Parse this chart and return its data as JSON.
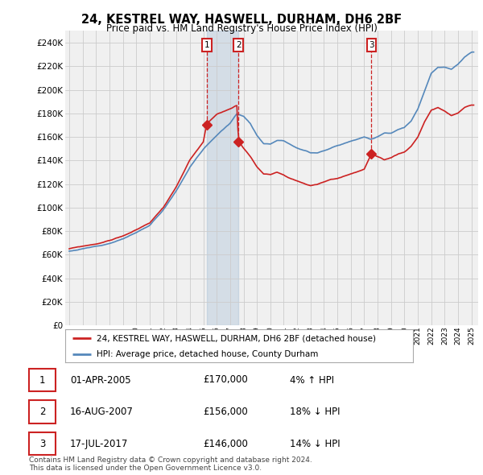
{
  "title": "24, KESTREL WAY, HASWELL, DURHAM, DH6 2BF",
  "subtitle": "Price paid vs. HM Land Registry's House Price Index (HPI)",
  "legend_line1": "24, KESTREL WAY, HASWELL, DURHAM, DH6 2BF (detached house)",
  "legend_line2": "HPI: Average price, detached house, County Durham",
  "footnote1": "Contains HM Land Registry data © Crown copyright and database right 2024.",
  "footnote2": "This data is licensed under the Open Government Licence v3.0.",
  "transactions": [
    {
      "label": "1",
      "date": "01-APR-2005",
      "price": "£170,000",
      "hpi": "4% ↑ HPI",
      "x": 2005.25
    },
    {
      "label": "2",
      "date": "16-AUG-2007",
      "price": "£156,000",
      "hpi": "18% ↓ HPI",
      "x": 2007.62
    },
    {
      "label": "3",
      "date": "17-JUL-2017",
      "price": "£146,000",
      "hpi": "14% ↓ HPI",
      "x": 2017.54
    }
  ],
  "transaction_prices": [
    170000,
    156000,
    146000
  ],
  "ylim": [
    0,
    250000
  ],
  "yticks": [
    0,
    20000,
    40000,
    60000,
    80000,
    100000,
    120000,
    140000,
    160000,
    180000,
    200000,
    220000,
    240000
  ],
  "grid_color": "#cccccc",
  "hpi_color": "#5588bb",
  "price_color": "#cc2222",
  "shade_color": "#ddeeff",
  "background_color": "#ffffff",
  "plot_bg_color": "#f0f0f0"
}
